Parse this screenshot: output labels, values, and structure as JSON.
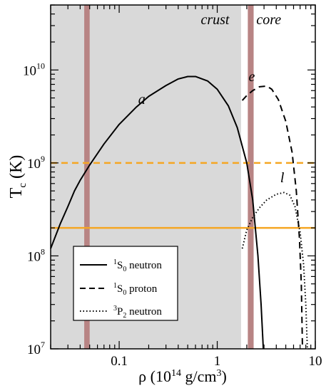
{
  "chart_data": {
    "type": "line",
    "title": "",
    "xlabel": {
      "main": "ρ (10",
      "sup1": "14",
      "mid": " g/cm",
      "sup2": "3",
      "end": ")"
    },
    "ylabel": {
      "main": "T",
      "sub": "c",
      "end": " (K)"
    },
    "x_scale": "log",
    "y_scale": "log",
    "xlim": [
      0.02,
      10
    ],
    "ylim": [
      10000000.0,
      50000000000.0
    ],
    "x_ticks": [
      {
        "value": 0.1,
        "label": "0.1"
      },
      {
        "value": 1,
        "label": "1"
      },
      {
        "value": 10,
        "label": "10"
      }
    ],
    "y_ticks": [
      {
        "value": 10000000.0,
        "base": "10",
        "exp": "7"
      },
      {
        "value": 100000000.0,
        "base": "10",
        "exp": "8"
      },
      {
        "value": 1000000000.0,
        "base": "10",
        "exp": "9"
      },
      {
        "value": 10000000000.0,
        "base": "10",
        "exp": "10"
      }
    ],
    "regions": [
      {
        "label": "crust",
        "x_range": [
          0.02,
          1.75
        ],
        "color": "#d9d9d9"
      },
      {
        "label": "core",
        "x_range": [
          1.75,
          10
        ],
        "color": "#ffffff"
      }
    ],
    "vertical_bands": [
      {
        "x_range": [
          0.044,
          0.05
        ],
        "color": "#b88484"
      },
      {
        "x_range": [
          2.05,
          2.35
        ],
        "color": "#b88484"
      }
    ],
    "horizontal_lines": [
      {
        "y": 1000000000.0,
        "style": "dashed",
        "color": "#f5a623"
      },
      {
        "y": 200000000.0,
        "style": "solid",
        "color": "#f5a623"
      }
    ],
    "series": [
      {
        "name": "1S0 neutron",
        "label": "a",
        "style": "solid",
        "points": [
          [
            0.02,
            120000000.0
          ],
          [
            0.025,
            220000000.0
          ],
          [
            0.03,
            340000000.0
          ],
          [
            0.035,
            500000000.0
          ],
          [
            0.04,
            650000000.0
          ],
          [
            0.05,
            950000000.0
          ],
          [
            0.07,
            1600000000.0
          ],
          [
            0.1,
            2600000000.0
          ],
          [
            0.15,
            4000000000.0
          ],
          [
            0.2,
            5200000000.0
          ],
          [
            0.3,
            6800000000.0
          ],
          [
            0.4,
            8000000000.0
          ],
          [
            0.5,
            8500000000.0
          ],
          [
            0.6,
            8500000000.0
          ],
          [
            0.8,
            7600000000.0
          ],
          [
            1.0,
            6200000000.0
          ],
          [
            1.3,
            4100000000.0
          ],
          [
            1.6,
            2400000000.0
          ],
          [
            2.0,
            1000000000.0
          ],
          [
            2.3,
            400000000.0
          ],
          [
            2.6,
            100000000.0
          ],
          [
            2.8,
            30000000.0
          ],
          [
            2.95,
            10000000.0
          ]
        ]
      },
      {
        "name": "1S0 proton",
        "label": "e",
        "style": "dashed",
        "points": [
          [
            1.8,
            4700000000.0
          ],
          [
            2.0,
            5300000000.0
          ],
          [
            2.3,
            6000000000.0
          ],
          [
            2.7,
            6600000000.0
          ],
          [
            3.2,
            6700000000.0
          ],
          [
            3.6,
            6200000000.0
          ],
          [
            4.2,
            4800000000.0
          ],
          [
            5.0,
            2800000000.0
          ],
          [
            5.8,
            1300000000.0
          ],
          [
            6.4,
            500000000.0
          ],
          [
            6.9,
            150000000.0
          ],
          [
            7.2,
            50000000.0
          ],
          [
            7.4,
            10000000.0
          ]
        ]
      },
      {
        "name": "3P2 neutron",
        "label": "l",
        "style": "dotted",
        "points": [
          [
            1.8,
            120000000.0
          ],
          [
            2.0,
            190000000.0
          ],
          [
            2.3,
            260000000.0
          ],
          [
            2.7,
            330000000.0
          ],
          [
            3.2,
            400000000.0
          ],
          [
            4.0,
            460000000.0
          ],
          [
            4.8,
            480000000.0
          ],
          [
            5.5,
            450000000.0
          ],
          [
            6.2,
            340000000.0
          ],
          [
            7.0,
            180000000.0
          ],
          [
            7.6,
            80000000.0
          ],
          [
            8.0,
            30000000.0
          ],
          [
            8.3,
            10000000.0
          ]
        ]
      }
    ],
    "annotations": [
      {
        "text": "a",
        "x": 0.17,
        "y": 4300000000.0
      },
      {
        "text": "e",
        "x": 2.25,
        "y": 7600000000.0
      },
      {
        "text": "l",
        "x": 4.6,
        "y": 620000000.0
      },
      {
        "text": "crust",
        "x": 0.95,
        "y": 31000000000.0
      },
      {
        "text": "core",
        "x": 3.35,
        "y": 31000000000.0
      }
    ],
    "legend": {
      "placement": "bottom-left",
      "entries": [
        {
          "sup": "1",
          "main": "S",
          "sub": "0",
          "rest": " neutron",
          "style": "solid"
        },
        {
          "sup": "1",
          "main": "S",
          "sub": "0",
          "rest": " proton",
          "style": "dashed"
        },
        {
          "sup": "3",
          "main": "P",
          "sub": "2",
          "rest": " neutron",
          "style": "dotted"
        }
      ]
    },
    "grid": false
  }
}
